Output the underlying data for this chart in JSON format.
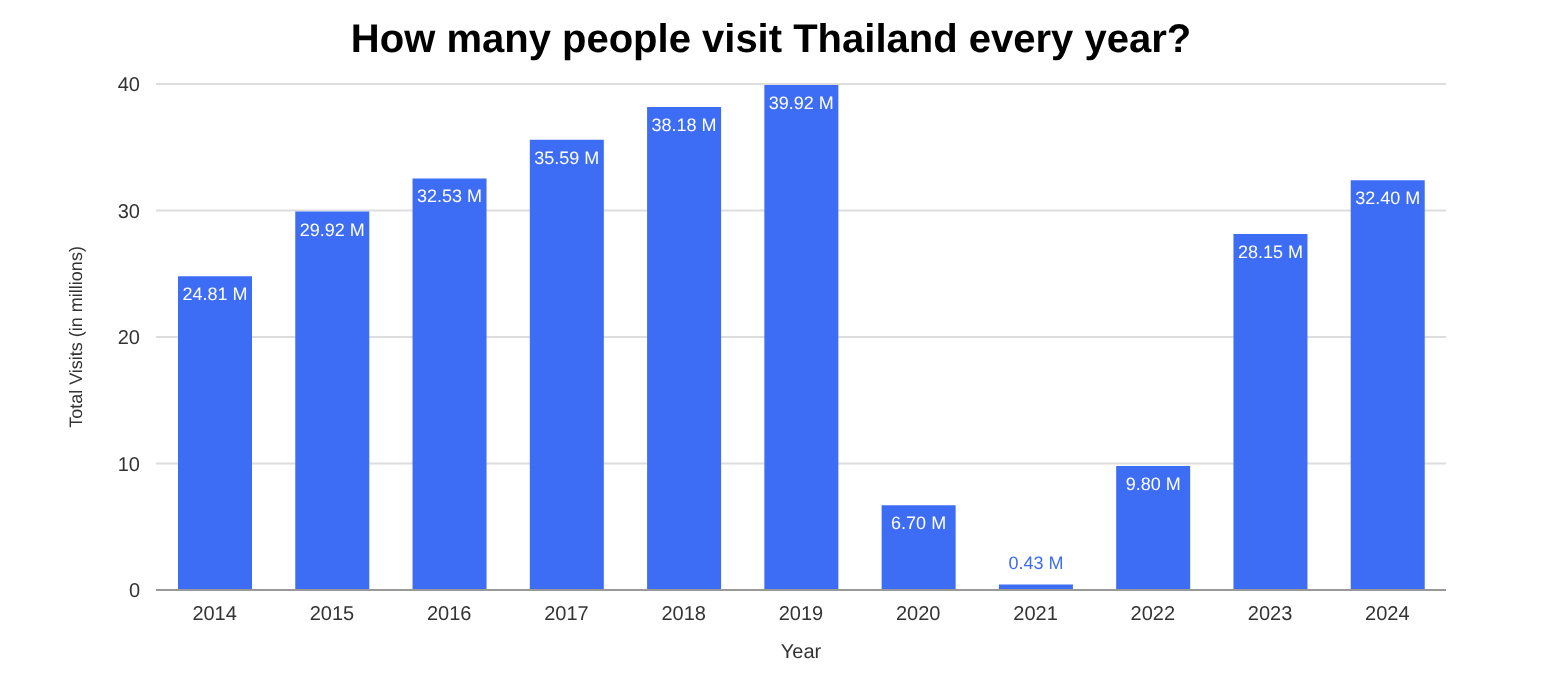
{
  "chart_data": {
    "type": "bar",
    "title": "How many people visit Thailand every year?",
    "xlabel": "Year",
    "ylabel": "Total Visits (in millions)",
    "categories": [
      "2014",
      "2015",
      "2016",
      "2017",
      "2018",
      "2019",
      "2020",
      "2021",
      "2022",
      "2023",
      "2024"
    ],
    "values": [
      24.81,
      29.92,
      32.53,
      35.59,
      38.18,
      39.92,
      6.7,
      0.43,
      9.8,
      28.15,
      32.4
    ],
    "value_labels": [
      "24.81 M",
      "29.92 M",
      "32.53 M",
      "35.59 M",
      "38.18 M",
      "39.92 M",
      "6.70 M",
      "0.43 M",
      "9.80 M",
      "28.15 M",
      "32.40 M"
    ],
    "color": "#3d6cf5",
    "ylim": [
      0,
      40
    ],
    "yticks": [
      0,
      10,
      20,
      30,
      40
    ],
    "grid": "y"
  }
}
